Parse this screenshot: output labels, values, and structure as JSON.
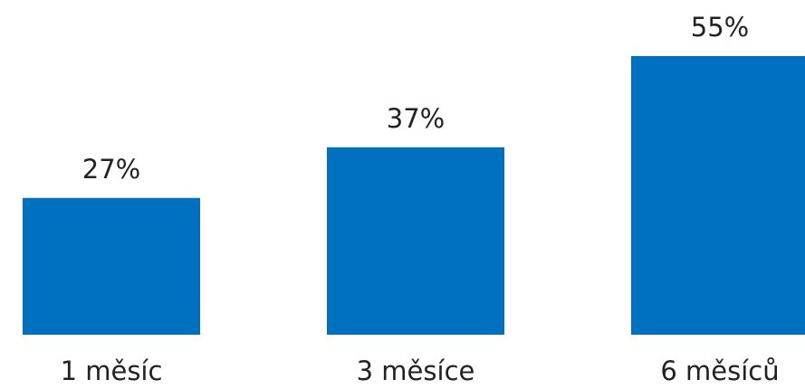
{
  "chart_data": {
    "type": "bar",
    "categories": [
      "1 měsíc",
      "3 měsíce",
      "6 měsíců"
    ],
    "values": [
      27,
      37,
      55
    ],
    "value_labels": [
      "27%",
      "37%",
      "55%"
    ],
    "color": "#0070c0"
  }
}
